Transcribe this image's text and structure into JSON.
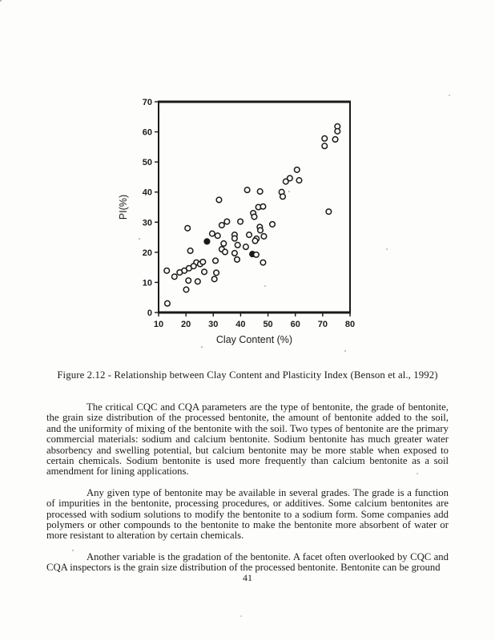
{
  "page": {
    "page_number": "41"
  },
  "figure": {
    "caption": "Figure 2.12 - Relationship between Clay Content and Plasticity Index (Benson et al., 1992)"
  },
  "chart_data": {
    "type": "scatter",
    "title": "",
    "xlabel": "Clay Content (%)",
    "ylabel": "PI(%)",
    "xlim": [
      10,
      80
    ],
    "ylim": [
      0,
      70
    ],
    "x_ticks": [
      10,
      20,
      30,
      40,
      50,
      60,
      70,
      80
    ],
    "y_ticks": [
      0,
      10,
      20,
      30,
      40,
      50,
      60,
      70
    ],
    "grid": false,
    "legend": "none",
    "marker": "open-circle",
    "points": [
      [
        75.4,
        61.8
      ],
      [
        75.4,
        60.2
      ],
      [
        70.7,
        57.8
      ],
      [
        74.6,
        57.5
      ],
      [
        70.7,
        55.3
      ],
      [
        60.6,
        47.4
      ],
      [
        58.0,
        44.6
      ],
      [
        61.4,
        43.9
      ],
      [
        56.5,
        43.5
      ],
      [
        55.0,
        40.0
      ],
      [
        55.4,
        38.5
      ],
      [
        42.4,
        40.7
      ],
      [
        47.1,
        40.2
      ],
      [
        32.1,
        37.4
      ],
      [
        72.2,
        33.5
      ],
      [
        46.5,
        35.0
      ],
      [
        48.2,
        35.2
      ],
      [
        44.6,
        33.0
      ],
      [
        45.0,
        31.8
      ],
      [
        20.6,
        28.0
      ],
      [
        33.1,
        29.0
      ],
      [
        35.0,
        30.2
      ],
      [
        39.9,
        30.2
      ],
      [
        47.0,
        28.4
      ],
      [
        51.6,
        29.3
      ],
      [
        47.2,
        27.3
      ],
      [
        29.6,
        26.2
      ],
      [
        31.6,
        25.5
      ],
      [
        37.8,
        25.8
      ],
      [
        37.8,
        24.6
      ],
      [
        43.1,
        25.8
      ],
      [
        48.5,
        25.3
      ],
      [
        45.8,
        24.5
      ],
      [
        27.7,
        23.6,
        "filled"
      ],
      [
        33.8,
        22.9
      ],
      [
        38.9,
        22.4
      ],
      [
        45.3,
        23.8
      ],
      [
        21.6,
        20.5
      ],
      [
        33.1,
        21.0
      ],
      [
        34.3,
        20.1
      ],
      [
        37.8,
        19.7
      ],
      [
        41.9,
        21.8
      ],
      [
        44.3,
        19.4,
        "filled"
      ],
      [
        45.7,
        19.2
      ],
      [
        30.8,
        17.2
      ],
      [
        38.7,
        17.6
      ],
      [
        48.2,
        16.6
      ],
      [
        23.8,
        16.6
      ],
      [
        25.2,
        16.1
      ],
      [
        26.2,
        16.8
      ],
      [
        22.8,
        15.4
      ],
      [
        21.1,
        14.7
      ],
      [
        19.4,
        13.9
      ],
      [
        17.7,
        13.3
      ],
      [
        15.8,
        11.9
      ],
      [
        13.0,
        13.9
      ],
      [
        26.7,
        13.5
      ],
      [
        31.1,
        13.2
      ],
      [
        20.9,
        10.6
      ],
      [
        24.3,
        10.3
      ],
      [
        30.4,
        11.1
      ],
      [
        20.1,
        7.6
      ],
      [
        13.2,
        3.0
      ]
    ],
    "ink_color": "#1a1a1a"
  },
  "paragraphs": [
    {
      "text": "The critical CQC and CQA parameters are the type of bentonite, the grade of bentonite, the grain size distribution of the processed bentonite, the amount of bentonite added to the soil, and the uniformity of mixing of the bentonite with the soil.  Two types of bentonite are the primary commercial materials:  sodium and calcium bentonite.  Sodium bentonite has much greater water absorbency and swelling potential, but calcium bentonite may be more stable when exposed to certain chemicals.  Sodium bentonite is used more frequently than calcium bentonite as a soil amendment for lining applications."
    },
    {
      "text": "Any given type of bentonite may be available in several grades.  The grade is a function of impurities in the bentonite, processing procedures, or additives.  Some calcium bentonites are processed with sodium solutions to modify the bentonite to a sodium form.  Some companies add polymers or other compounds to the bentonite to make the bentonite more absorbent of water or more resistant to alteration by certain chemicals."
    },
    {
      "text": "Another variable is the gradation of the bentonite.  A facet often overlooked by CQC and CQA inspectors is the grain size distribution of the processed bentonite.  Bentonite can be ground"
    }
  ]
}
